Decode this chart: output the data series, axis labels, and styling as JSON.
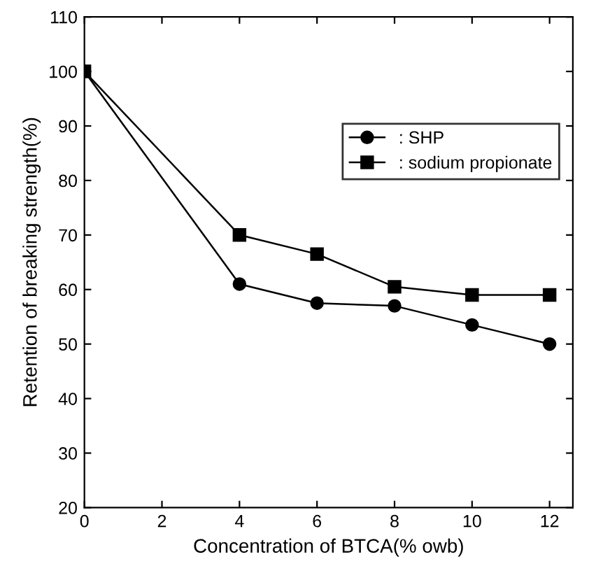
{
  "chart_data": {
    "type": "line",
    "xlabel": "Concentration of BTCA(% owb)",
    "ylabel": "Retention of breaking strength(%)",
    "x": [
      0,
      4,
      6,
      8,
      10,
      12
    ],
    "series": [
      {
        "name": ": SHP",
        "color": "#000000",
        "marker": "circle",
        "values": [
          100,
          61,
          57.5,
          57,
          53.5,
          50
        ]
      },
      {
        "name": ": sodium propionate",
        "color": "#000000",
        "marker": "square",
        "values": [
          100,
          70,
          66.5,
          60.5,
          59,
          59
        ]
      }
    ],
    "xlim": [
      0,
      12.6
    ],
    "xticks": [
      0,
      2,
      4,
      6,
      8,
      10,
      12
    ],
    "ylim": [
      20,
      110
    ],
    "yticks": [
      20,
      30,
      40,
      50,
      60,
      70,
      80,
      90,
      100,
      110
    ],
    "legend": "top right",
    "line_style": "solid",
    "grid": false
  }
}
